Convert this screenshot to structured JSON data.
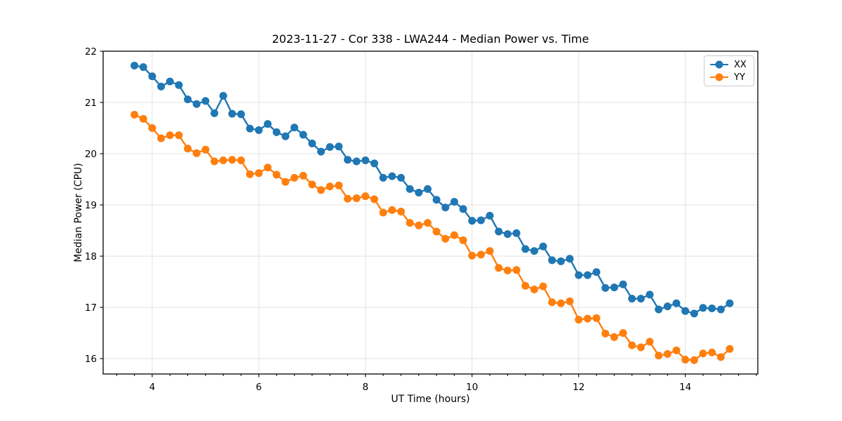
{
  "figure": {
    "background": "#ffffff"
  },
  "chart_data": {
    "type": "line",
    "title": "2023-11-27 - Cor 338 - LWA244 - Median Power vs. Time",
    "xlabel": "UT Time (hours)",
    "ylabel": "Median Power (CPU)",
    "xlim": [
      3.08,
      15.36
    ],
    "ylim": [
      15.7,
      22.0
    ],
    "xticks": [
      4,
      6,
      8,
      10,
      12,
      14
    ],
    "yticks": [
      16,
      17,
      18,
      19,
      20,
      21,
      22
    ],
    "x_minor_step": 0.33333,
    "grid": true,
    "grid_color": "#e3e3e3",
    "axis_color": "#000000",
    "legend_position": "upper right",
    "x": [
      3.667,
      3.833,
      4.0,
      4.167,
      4.333,
      4.5,
      4.667,
      4.833,
      5.0,
      5.167,
      5.333,
      5.5,
      5.667,
      5.833,
      6.0,
      6.167,
      6.333,
      6.5,
      6.667,
      6.833,
      7.0,
      7.167,
      7.333,
      7.5,
      7.667,
      7.833,
      8.0,
      8.167,
      8.333,
      8.5,
      8.667,
      8.833,
      9.0,
      9.167,
      9.333,
      9.5,
      9.667,
      9.833,
      10.0,
      10.167,
      10.333,
      10.5,
      10.667,
      10.833,
      11.0,
      11.167,
      11.333,
      11.5,
      11.667,
      11.833,
      12.0,
      12.167,
      12.333,
      12.5,
      12.667,
      12.833,
      13.0,
      13.167,
      13.333,
      13.5,
      13.667,
      13.833,
      14.0,
      14.167,
      14.333,
      14.5,
      14.667,
      14.833
    ],
    "series": [
      {
        "name": "XX",
        "color": "#1f77b4",
        "marker": "circle",
        "values": [
          21.72,
          21.69,
          21.51,
          21.31,
          21.41,
          21.34,
          21.06,
          20.97,
          21.03,
          20.79,
          21.13,
          20.78,
          20.77,
          20.49,
          20.46,
          20.58,
          20.42,
          20.34,
          20.51,
          20.37,
          20.2,
          20.04,
          20.13,
          20.14,
          19.88,
          19.85,
          19.87,
          19.81,
          19.53,
          19.56,
          19.53,
          19.31,
          19.24,
          19.31,
          19.1,
          18.95,
          19.06,
          18.92,
          18.69,
          18.7,
          18.79,
          18.48,
          18.43,
          18.45,
          18.14,
          18.1,
          18.19,
          17.92,
          17.9,
          17.95,
          17.63,
          17.63,
          17.69,
          17.38,
          17.39,
          17.45,
          17.17,
          17.17,
          17.25,
          16.96,
          17.02,
          17.08,
          16.93,
          16.88,
          16.99,
          16.98,
          16.96,
          17.08
        ]
      },
      {
        "name": "YY",
        "color": "#ff7f0e",
        "marker": "circle",
        "values": [
          20.76,
          20.68,
          20.5,
          20.3,
          20.36,
          20.36,
          20.1,
          20.01,
          20.08,
          19.85,
          19.87,
          19.88,
          19.87,
          19.6,
          19.62,
          19.73,
          19.59,
          19.45,
          19.53,
          19.57,
          19.4,
          19.29,
          19.36,
          19.38,
          19.12,
          19.13,
          19.17,
          19.11,
          18.85,
          18.9,
          18.87,
          18.65,
          18.6,
          18.65,
          18.48,
          18.34,
          18.41,
          18.31,
          18.01,
          18.03,
          18.1,
          17.77,
          17.72,
          17.73,
          17.42,
          17.35,
          17.41,
          17.1,
          17.08,
          17.12,
          16.76,
          16.78,
          16.79,
          16.49,
          16.42,
          16.5,
          16.26,
          16.22,
          16.33,
          16.06,
          16.09,
          16.16,
          15.98,
          15.97,
          16.1,
          16.12,
          16.03,
          16.19
        ]
      }
    ]
  }
}
